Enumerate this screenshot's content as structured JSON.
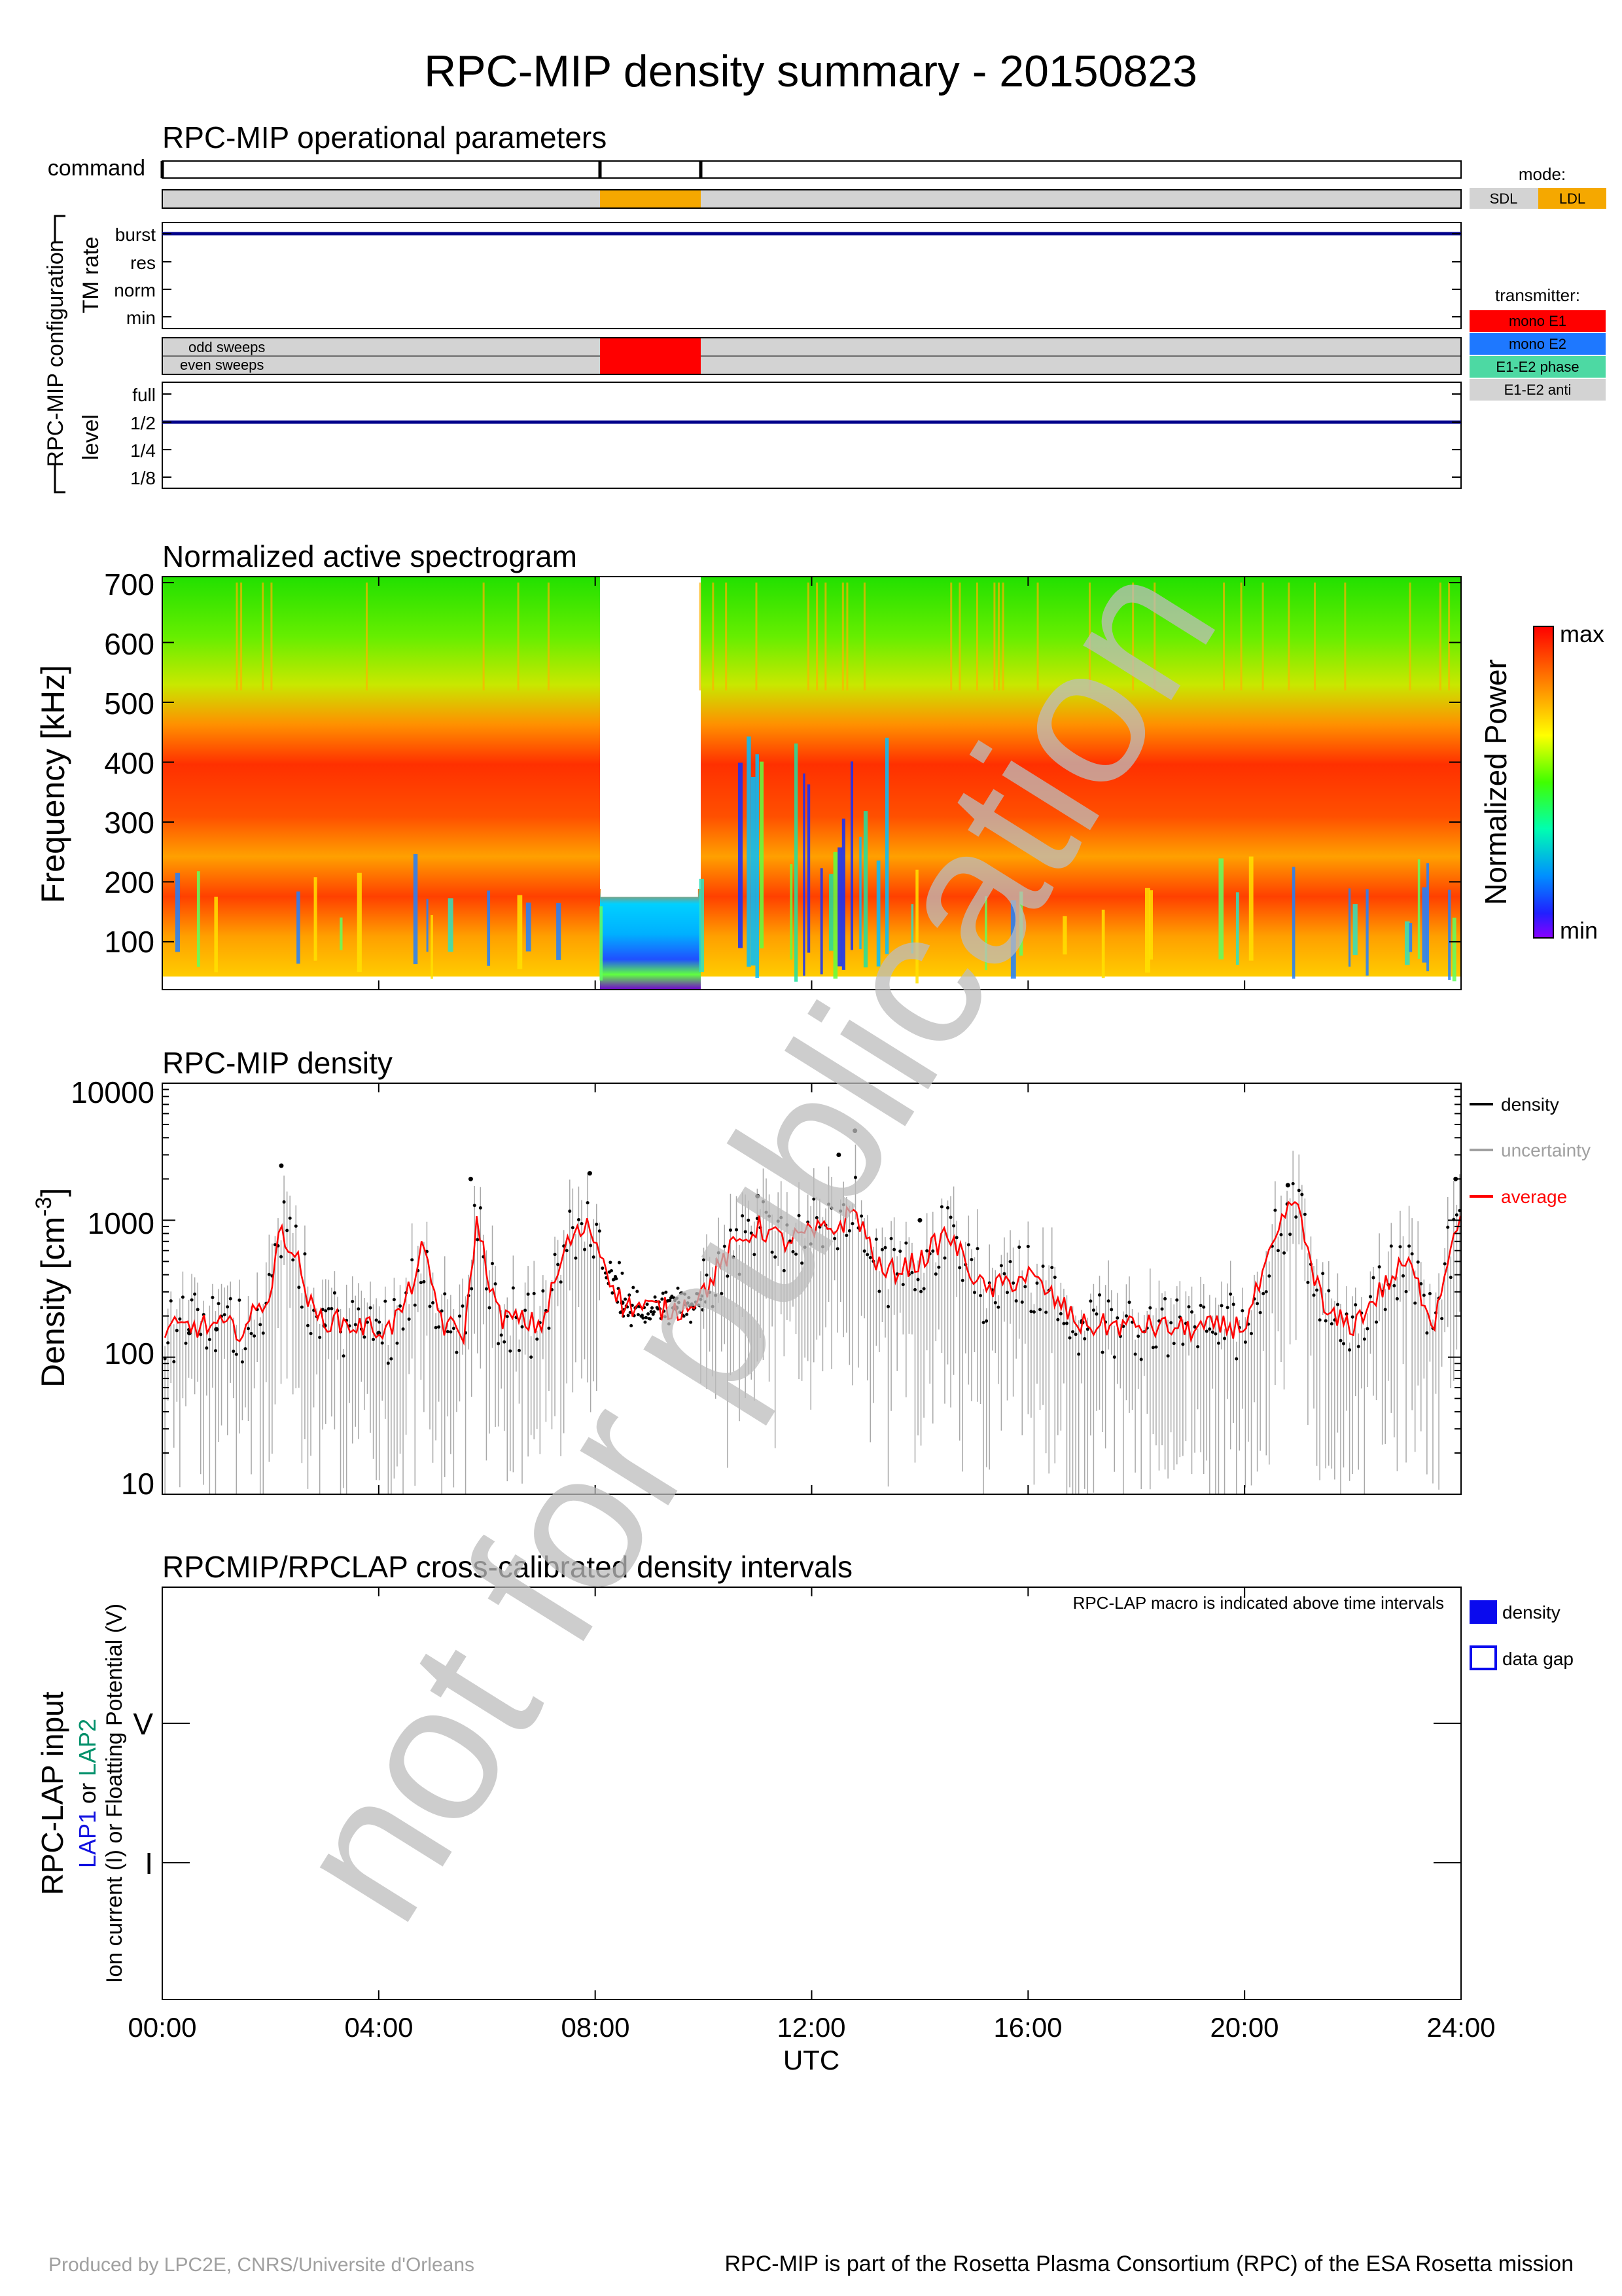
{
  "title": "RPC-MIP density summary - 20150823",
  "panels": {
    "operational": {
      "title": "RPC-MIP operational parameters",
      "command_label": "command",
      "config_label": "RPC-MIP configuration",
      "tm_label": "TM rate",
      "tm_ticks": [
        "burst",
        "res",
        "norm",
        "min"
      ],
      "sweeps": [
        "odd sweeps",
        "even sweeps"
      ],
      "level_label": "level",
      "level_ticks": [
        "full",
        "1/2",
        "1/4",
        "1/8"
      ],
      "mode_title": "mode:",
      "modes": [
        {
          "label": "SDL",
          "color": "#d3d3d3"
        },
        {
          "label": "LDL",
          "color": "#f5a800"
        }
      ],
      "transmitter_title": "transmitter:",
      "transmitters": [
        {
          "label": "mono E1",
          "color": "#ff0000"
        },
        {
          "label": "mono E2",
          "color": "#1e78ff"
        },
        {
          "label": "E1-E2 phase",
          "color": "#4dd9a3"
        },
        {
          "label": "E1-E2 anti",
          "color": "#d3d3d3"
        }
      ]
    },
    "spectrogram": {
      "title": "Normalized active spectrogram",
      "ylabel": "Frequency [kHz]",
      "yticks": [
        "700",
        "600",
        "500",
        "400",
        "300",
        "200",
        "100"
      ],
      "colorbar_label": "Normalized Power",
      "colorbar_max": "max",
      "colorbar_min": "min"
    },
    "density": {
      "title": "RPC-MIP density",
      "ylabel": "Density [cm",
      "ylabel_sup": "-3",
      "ylabel_end": "]",
      "yticks": [
        "10000",
        "1000",
        "100",
        "10"
      ],
      "legend": [
        {
          "label": "density",
          "color": "#000000"
        },
        {
          "label": "uncertainty",
          "color": "#a0a0a0"
        },
        {
          "label": "average",
          "color": "#ff0000"
        }
      ]
    },
    "crosscal": {
      "title": "RPCMIP/RPCLAP cross-calibrated density intervals",
      "note": "RPC-LAP macro is indicated above time intervals",
      "ylabel1": "RPC-LAP input",
      "ylabel2_a": "LAP1",
      "ylabel2_b": " or ",
      "ylabel2_c": "LAP2",
      "ylabel3": "Ion current (I) or Floatting Potential (V)",
      "yticks": [
        "V",
        "I"
      ],
      "legend": [
        {
          "label": "density"
        },
        {
          "label": "data gap"
        }
      ]
    }
  },
  "xaxis": {
    "ticks": [
      "00:00",
      "04:00",
      "08:00",
      "12:00",
      "16:00",
      "20:00",
      "24:00"
    ],
    "label": "UTC"
  },
  "watermark": "not for publication",
  "footer_left": "Produced by LPC2E, CNRS/Universite d'Orleans",
  "footer_right": "RPC-MIP is part of the Rosetta Plasma Consortium (RPC) of the ESA Rosetta mission",
  "chart_data": {
    "type": "scatter",
    "title": "RPC-MIP density",
    "xlabel": "UTC",
    "ylabel": "Density [cm-3]",
    "x_unit": "hours UTC",
    "xlim": [
      0,
      24
    ],
    "ylim": [
      10,
      10000
    ],
    "yscale": "log",
    "ldl_interval": [
      8.1,
      9.9
    ],
    "transmitter_mono_e1_interval": [
      8.1,
      9.9
    ],
    "tm_rate": "burst",
    "level": "1/2",
    "series": [
      {
        "name": "average",
        "x": [
          0.2,
          0.8,
          1.5,
          2.0,
          2.2,
          2.5,
          2.8,
          3.5,
          4.2,
          4.5,
          4.8,
          5.2,
          5.6,
          5.8,
          6.2,
          7.0,
          7.5,
          7.9,
          8.5,
          9.0,
          9.5,
          10.0,
          10.5,
          11.0,
          11.5,
          12.0,
          12.5,
          12.8,
          13.3,
          14.0,
          14.5,
          15.2,
          16.0,
          17.0,
          18.0,
          19.0,
          20.0,
          20.9,
          21.5,
          22.0,
          22.5,
          23.0,
          23.5,
          23.9
        ],
        "y": [
          160,
          170,
          160,
          300,
          900,
          500,
          200,
          170,
          160,
          250,
          600,
          170,
          150,
          1000,
          200,
          170,
          700,
          900,
          240,
          230,
          220,
          300,
          600,
          900,
          700,
          800,
          900,
          1200,
          400,
          500,
          800,
          300,
          400,
          170,
          170,
          160,
          170,
          1500,
          200,
          170,
          300,
          500,
          180,
          1000
        ]
      },
      {
        "name": "density",
        "x": [
          0.5,
          1.0,
          2.2,
          3.0,
          4.0,
          5.7,
          7.9,
          8.5,
          9.5,
          11.0,
          12.5,
          12.8,
          14.0,
          17.0,
          20.8,
          23.9
        ],
        "y": [
          150,
          160,
          2500,
          170,
          150,
          2000,
          2200,
          250,
          230,
          1500,
          3000,
          4500,
          1000,
          180,
          1800,
          2000
        ]
      }
    ],
    "spectrogram": {
      "ylabel": "Frequency [kHz]",
      "ylim": [
        20,
        710
      ],
      "peak_band_khz": [
        250,
        350
      ],
      "data_gap_hours": [
        8.1,
        9.9
      ],
      "data_gap_top_khz": 175
    }
  }
}
